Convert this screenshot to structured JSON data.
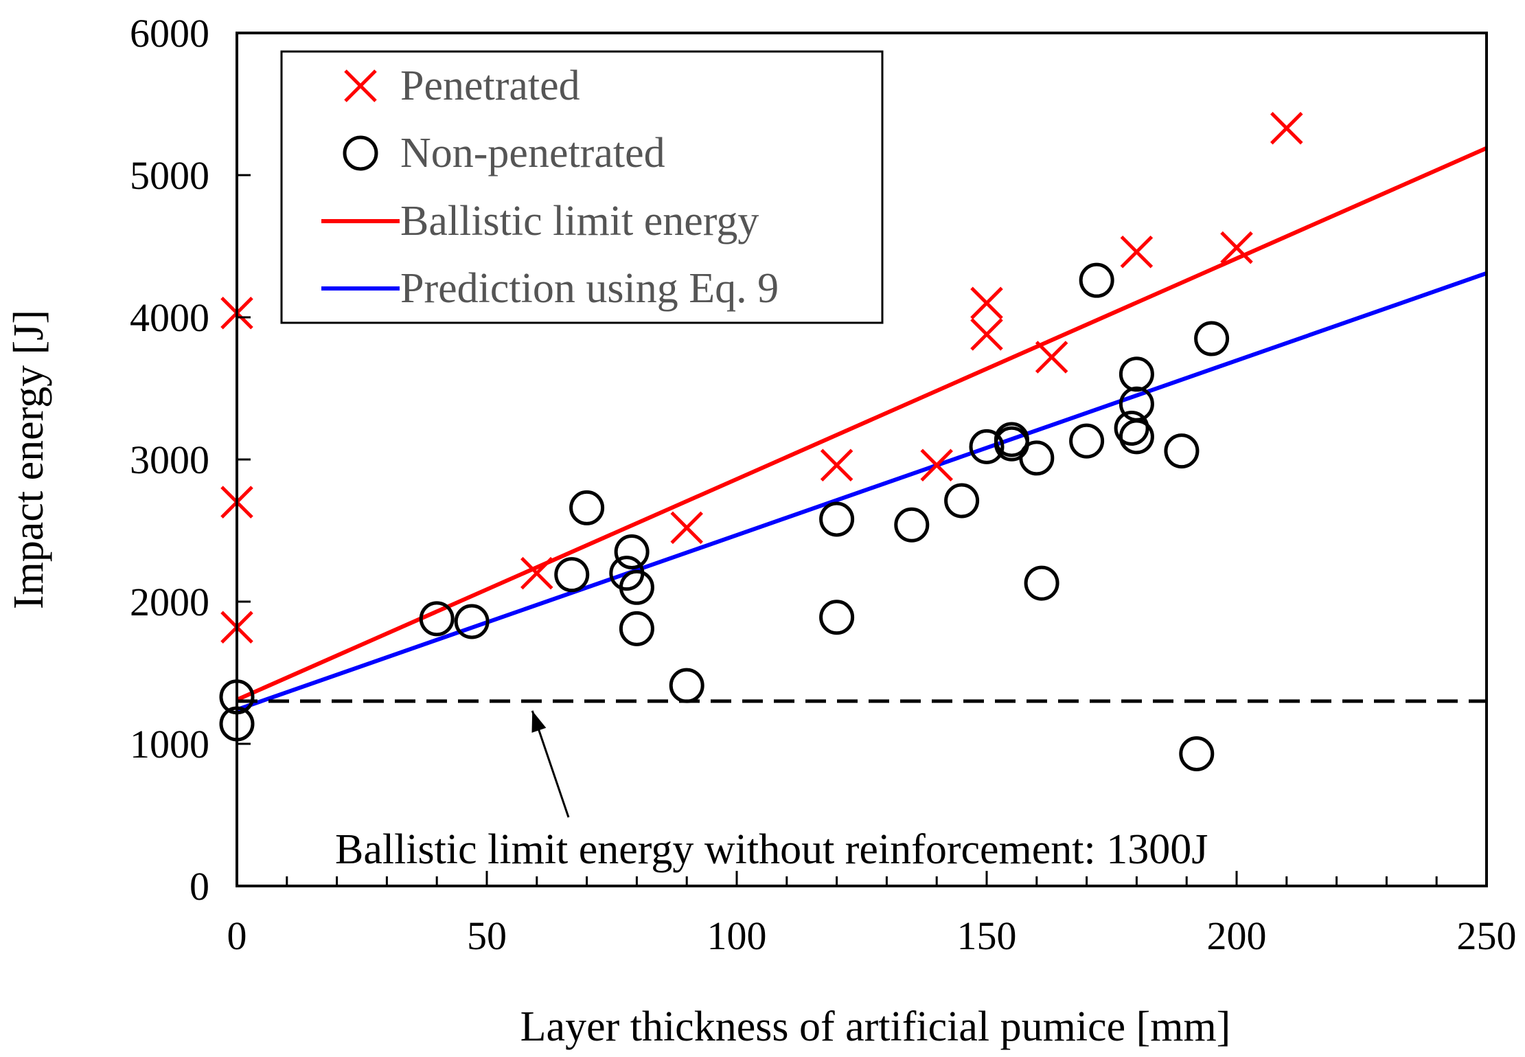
{
  "chart_data": {
    "type": "scatter",
    "title": "",
    "xlabel": "Layer thickness of artificial pumice [mm]",
    "ylabel": "Impact energy [J]",
    "xlim": [
      0,
      250
    ],
    "ylim": [
      0,
      6000
    ],
    "x_ticks": [
      0,
      50,
      100,
      150,
      200,
      250
    ],
    "y_ticks": [
      0,
      1000,
      2000,
      3000,
      4000,
      5000,
      6000
    ],
    "x_minor_step": 10,
    "grid": false,
    "legend_position": "top-left",
    "series": [
      {
        "name": "Penetrated",
        "kind": "scatter",
        "marker": "x",
        "color": "#ff0000",
        "points": [
          [
            0,
            4030
          ],
          [
            0,
            2700
          ],
          [
            0,
            1820
          ],
          [
            60,
            2200
          ],
          [
            90,
            2520
          ],
          [
            120,
            2960
          ],
          [
            140,
            2960
          ],
          [
            150,
            4100
          ],
          [
            150,
            3880
          ],
          [
            163,
            3720
          ],
          [
            180,
            4460
          ],
          [
            200,
            4490
          ],
          [
            210,
            5330
          ]
        ]
      },
      {
        "name": "Non-penetrated",
        "kind": "scatter",
        "marker": "circle",
        "color": "#000000",
        "points": [
          [
            0,
            1330
          ],
          [
            0,
            1140
          ],
          [
            40,
            1880
          ],
          [
            47,
            1860
          ],
          [
            67,
            2190
          ],
          [
            70,
            2660
          ],
          [
            78,
            2200
          ],
          [
            79,
            2350
          ],
          [
            80,
            2100
          ],
          [
            80,
            1810
          ],
          [
            90,
            1410
          ],
          [
            120,
            2580
          ],
          [
            120,
            1890
          ],
          [
            135,
            2540
          ],
          [
            145,
            2710
          ],
          [
            150,
            3090
          ],
          [
            155,
            3140
          ],
          [
            155,
            3110
          ],
          [
            160,
            3010
          ],
          [
            161,
            2130
          ],
          [
            170,
            3130
          ],
          [
            172,
            4260
          ],
          [
            179,
            3220
          ],
          [
            180,
            3600
          ],
          [
            180,
            3390
          ],
          [
            180,
            3160
          ],
          [
            189,
            3060
          ],
          [
            192,
            930
          ],
          [
            195,
            3850
          ]
        ]
      },
      {
        "name": "Ballistic limit energy",
        "kind": "line",
        "color": "#ff0000",
        "points": [
          [
            0,
            1310
          ],
          [
            250,
            5190
          ]
        ]
      },
      {
        "name": "Prediction using Eq. 9",
        "kind": "line",
        "color": "#0000ff",
        "points": [
          [
            0,
            1240
          ],
          [
            250,
            4310
          ]
        ]
      },
      {
        "name": "Ballistic limit energy without reinforcement",
        "kind": "dashed-line",
        "color": "#000000",
        "points": [
          [
            0,
            1300
          ],
          [
            250,
            1300
          ]
        ]
      }
    ],
    "annotations": [
      {
        "text": "Ballistic limit energy without reinforcement: 1300J",
        "arrow_to": [
          58,
          1300
        ]
      }
    ]
  }
}
